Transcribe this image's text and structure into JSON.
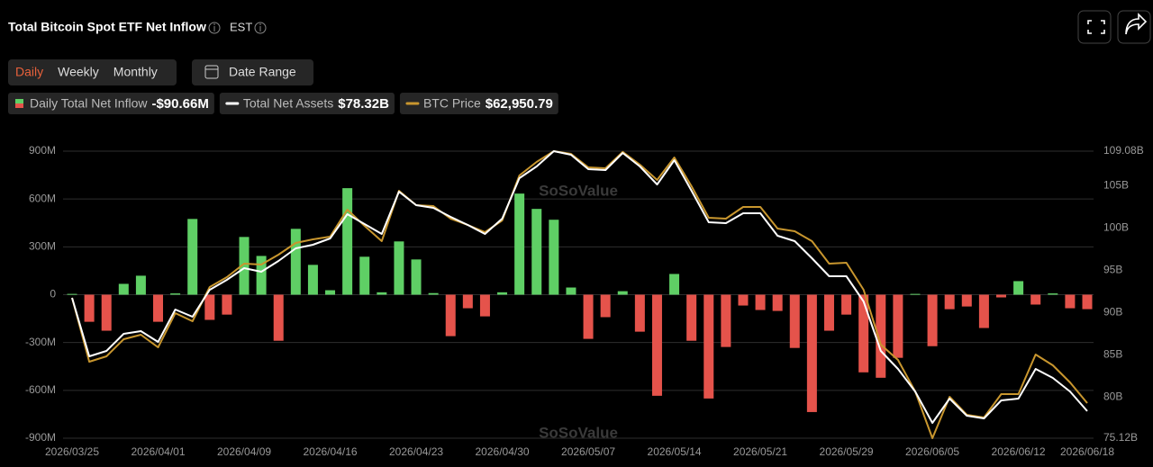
{
  "header": {
    "title": "Total Bitcoin Spot ETF Net Inflow",
    "timezone": "EST"
  },
  "controls": {
    "periods": [
      "Daily",
      "Weekly",
      "Monthly"
    ],
    "active_period": "Daily",
    "date_range": "Date Range"
  },
  "watermark": "SoSoValue",
  "chart_data": {
    "type": "bar",
    "categories": [
      "2026/03/25",
      null,
      null,
      null,
      null,
      "2026/04/01",
      null,
      null,
      null,
      null,
      "2026/04/09",
      null,
      null,
      null,
      null,
      "2026/04/16",
      null,
      null,
      null,
      null,
      "2026/04/23",
      null,
      null,
      null,
      null,
      "2026/04/30",
      null,
      null,
      null,
      null,
      "2026/05/07",
      null,
      null,
      null,
      null,
      "2026/05/14",
      null,
      null,
      null,
      null,
      "2026/05/21",
      null,
      null,
      null,
      null,
      "2026/05/29",
      null,
      null,
      null,
      null,
      "2026/06/05",
      null,
      null,
      null,
      null,
      "2026/06/12",
      null,
      null,
      null,
      "2026/06/18"
    ],
    "series": [
      {
        "name": "Daily Total Net Inflow",
        "type": "bar",
        "latest_label": "-$90.66M",
        "color": "#5fcf65",
        "negative_color": "#e5534b",
        "values": [
          5,
          -170,
          -226,
          68,
          119,
          -170,
          8,
          475,
          -158,
          -125,
          362,
          243,
          -289,
          413,
          187,
          28,
          668,
          238,
          15,
          334,
          221,
          10,
          -260,
          -85,
          -136,
          15,
          634,
          538,
          470,
          45,
          -277,
          -141,
          22,
          -232,
          -634,
          130,
          -289,
          -651,
          -328,
          -68,
          -96,
          -102,
          -334,
          -736,
          -226,
          -125,
          -487,
          -521,
          -396,
          5,
          -323,
          -91,
          -74,
          -209,
          -17,
          85,
          -62,
          8,
          -85,
          -90.66
        ]
      },
      {
        "name": "Total Net Assets",
        "type": "line",
        "axis": "y2",
        "latest_label": "$78.32B",
        "color": "#ffffff",
        "values": [
          91.73,
          84.81,
          85.45,
          87.47,
          87.79,
          86.51,
          90.34,
          89.49,
          92.68,
          93.86,
          95.24,
          94.81,
          96.09,
          97.58,
          98.01,
          98.75,
          101.63,
          100.46,
          99.29,
          104.29,
          102.69,
          102.37,
          101.31,
          100.35,
          99.29,
          101.1,
          105.89,
          107.27,
          109.08,
          108.65,
          106.95,
          106.84,
          108.87,
          107.27,
          105.14,
          108.02,
          104.4,
          100.67,
          100.56,
          101.73,
          101.73,
          99.07,
          98.43,
          96.41,
          94.28,
          94.28,
          91.3,
          85.45,
          83.32,
          80.65,
          76.93,
          79.8,
          77.78,
          77.46,
          79.59,
          79.8,
          83.32,
          82.25,
          80.65,
          78.32
        ]
      },
      {
        "name": "BTC Price",
        "type": "line",
        "latest_label": "$62,950.79",
        "color": "#c8962e",
        "values": [
          77806,
          68792,
          69553,
          71966,
          72600,
          70823,
          75647,
          74505,
          79329,
          80726,
          82630,
          82503,
          83900,
          85550,
          86058,
          86439,
          90248,
          87963,
          85804,
          92914,
          90883,
          90756,
          88978,
          88090,
          87074,
          88724,
          95072,
          96977,
          98500,
          98119,
          96215,
          96088,
          98400,
          96596,
          94438,
          97612,
          93549,
          89105,
          88978,
          90629,
          90629,
          87582,
          87201,
          85804,
          82630,
          82757,
          78948,
          71204,
          69046,
          64602,
          58000,
          63840,
          61301,
          60920,
          64221,
          64221,
          69807,
          68284,
          65872,
          62950.79
        ]
      }
    ],
    "ylim": [
      -900,
      900
    ],
    "yticks": [
      {
        "value": 900,
        "label": "900M"
      },
      {
        "value": 600,
        "label": "600M"
      },
      {
        "value": 300,
        "label": "300M"
      },
      0,
      {
        "value": -300,
        "label": "-300M"
      },
      {
        "value": -600,
        "label": "-600M"
      },
      {
        "value": -900,
        "label": "-900M"
      }
    ],
    "y2lim": [
      75.12,
      109.08
    ],
    "y2ticks": [
      {
        "value": 109.08,
        "label": "109.08B"
      },
      {
        "value": 105,
        "label": "105B"
      },
      {
        "value": 100,
        "label": "100B"
      },
      {
        "value": 95,
        "label": "95B"
      },
      {
        "value": 90,
        "label": "90B"
      },
      {
        "value": 85,
        "label": "85B"
      },
      {
        "value": 80,
        "label": "80B"
      },
      {
        "value": 75.12,
        "label": "75.12B"
      }
    ],
    "grid": true
  }
}
